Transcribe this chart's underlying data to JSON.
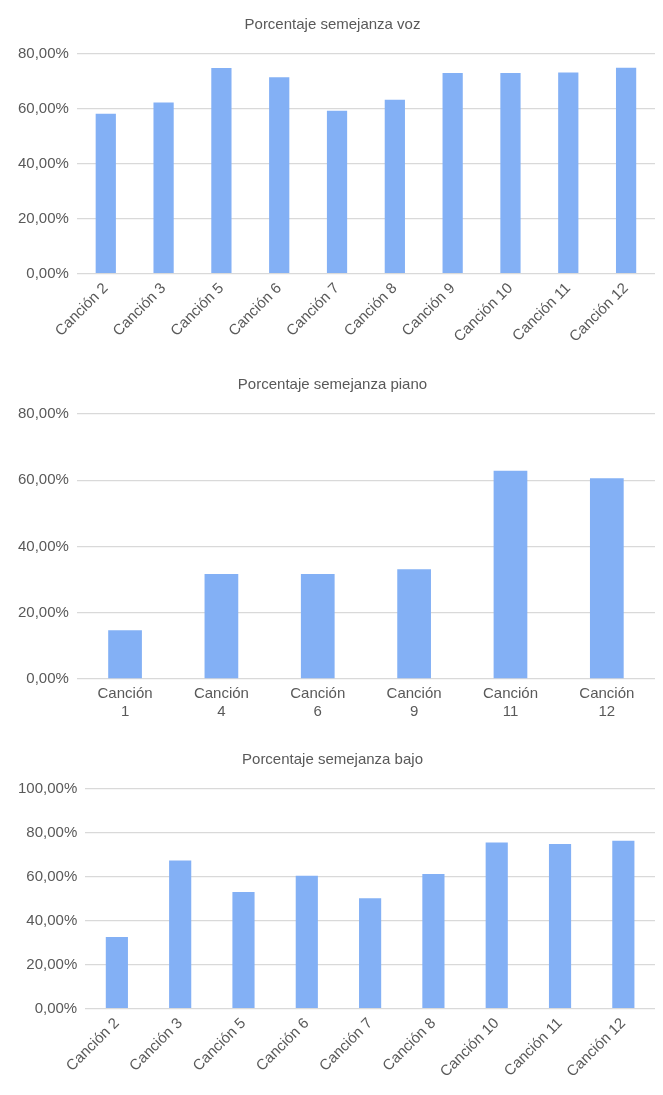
{
  "chart_data": [
    {
      "type": "bar",
      "title": "Porcentaje semejanza voz",
      "categories": [
        "Canción 2",
        "Canción 3",
        "Canción 5",
        "Canción 6",
        "Canción 7",
        "Canción 8",
        "Canción 9",
        "Canción 10",
        "Canción 11",
        "Canción 12"
      ],
      "values": [
        58.2,
        62.3,
        74.9,
        71.5,
        59.3,
        63.3,
        73.1,
        73.1,
        73.3,
        75.0
      ],
      "color": "#83b0f5",
      "ylim": [
        0,
        80
      ],
      "yticks": [
        {
          "value": 0,
          "label": "0,00%"
        },
        {
          "value": 20,
          "label": "20,00%"
        },
        {
          "value": 40,
          "label": "40,00%"
        },
        {
          "value": 60,
          "label": "60,00%"
        },
        {
          "value": 80,
          "label": "80,00%"
        }
      ],
      "grid": "y",
      "legend": false
    },
    {
      "type": "bar",
      "title": "Porcentaje semejanza piano",
      "categories": [
        "Canción 1",
        "Canción 4",
        "Canción 6",
        "Canción 9",
        "Canción 11",
        "Canción 12"
      ],
      "values": [
        14.7,
        31.7,
        31.7,
        33.1,
        62.9,
        60.6
      ],
      "color": "#83b0f5",
      "ylim": [
        0,
        80
      ],
      "yticks": [
        {
          "value": 0,
          "label": "0,00%"
        },
        {
          "value": 20,
          "label": "20,00%"
        },
        {
          "value": 40,
          "label": "40,00%"
        },
        {
          "value": 60,
          "label": "60,00%"
        },
        {
          "value": 80,
          "label": "80,00%"
        }
      ],
      "grid": "y",
      "legend": false
    },
    {
      "type": "bar",
      "title": "Porcentaje semejanza bajo",
      "categories": [
        "Canción 2",
        "Canción 3",
        "Canción 5",
        "Canción 6",
        "Canción 7",
        "Canción 8",
        "Canción 10",
        "Canción 11",
        "Canción 12"
      ],
      "values": [
        32.6,
        67.4,
        53.1,
        60.5,
        50.3,
        61.3,
        75.6,
        74.9,
        76.4
      ],
      "color": "#83b0f5",
      "ylim": [
        0,
        100
      ],
      "yticks": [
        {
          "value": 0,
          "label": "0,00%"
        },
        {
          "value": 20,
          "label": "20,00%"
        },
        {
          "value": 40,
          "label": "40,00%"
        },
        {
          "value": 60,
          "label": "60,00%"
        },
        {
          "value": 80,
          "label": "80,00%"
        },
        {
          "value": 100,
          "label": "100,00%"
        }
      ],
      "grid": "y",
      "legend": false
    }
  ]
}
